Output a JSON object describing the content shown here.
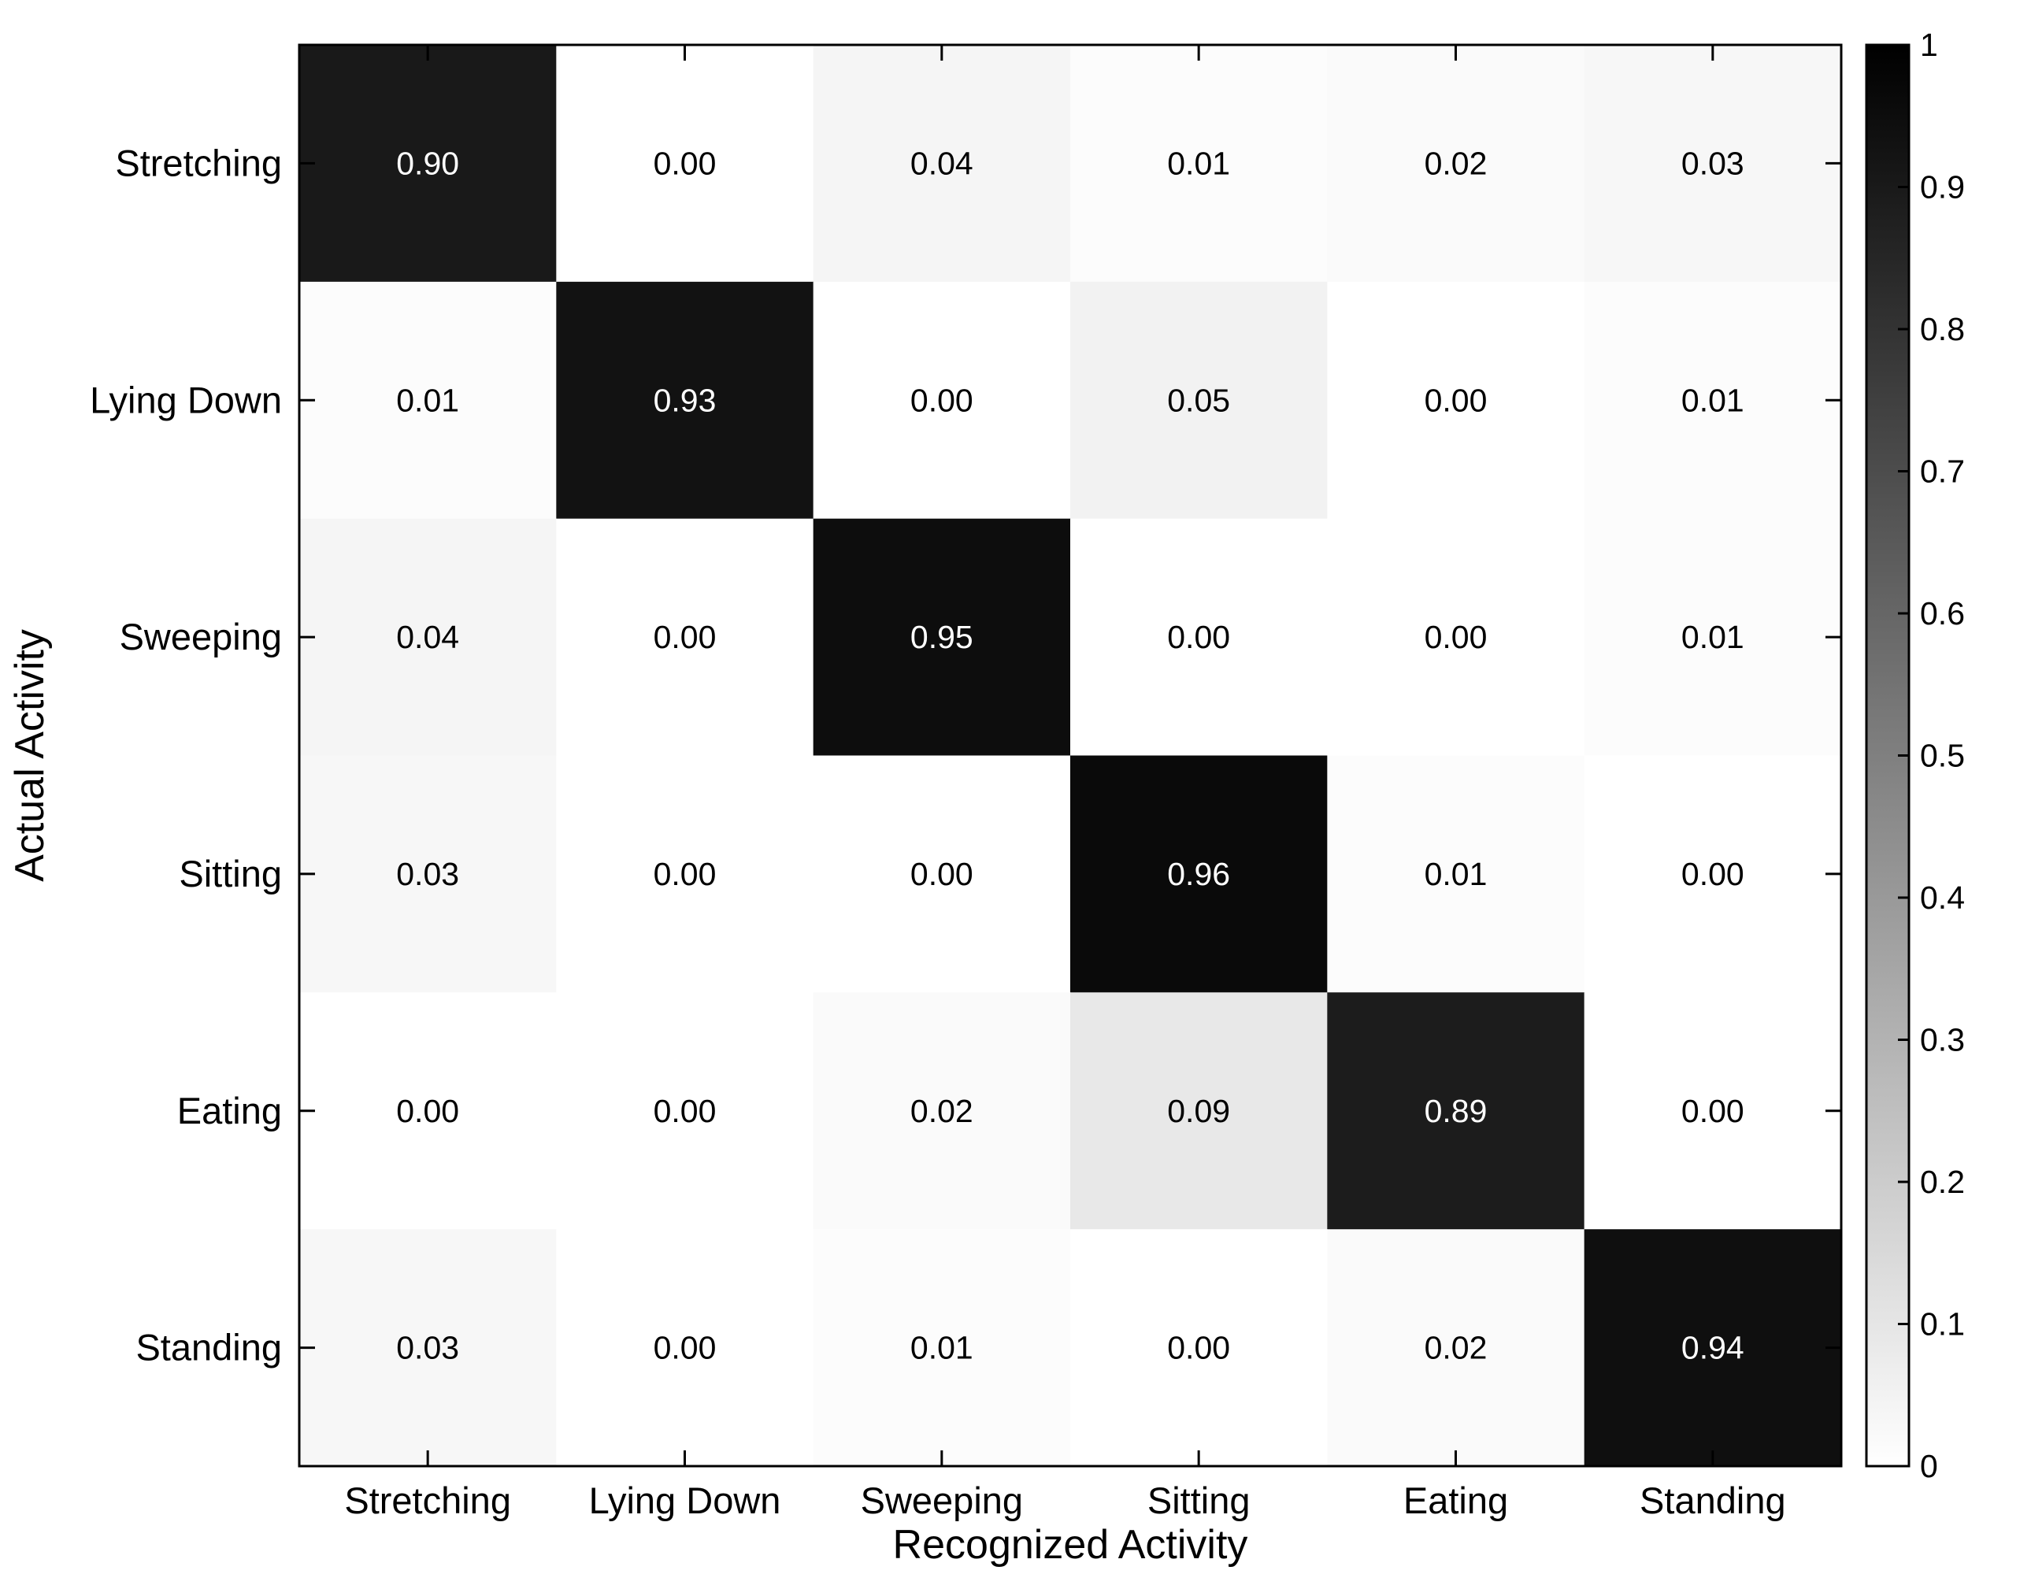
{
  "chart_data": {
    "type": "heatmap",
    "title": "",
    "xlabel": "Recognized Activity",
    "ylabel": "Actual Activity",
    "x_categories": [
      "Stretching",
      "Lying Down",
      "Sweeping",
      "Sitting",
      "Eating",
      "Standing"
    ],
    "y_categories": [
      "Stretching",
      "Lying Down",
      "Sweeping",
      "Sitting",
      "Eating",
      "Standing"
    ],
    "values": [
      [
        0.9,
        0.0,
        0.04,
        0.01,
        0.02,
        0.03
      ],
      [
        0.01,
        0.93,
        0.0,
        0.05,
        0.0,
        0.01
      ],
      [
        0.04,
        0.0,
        0.95,
        0.0,
        0.0,
        0.01
      ],
      [
        0.03,
        0.0,
        0.0,
        0.96,
        0.01,
        0.0
      ],
      [
        0.0,
        0.0,
        0.02,
        0.09,
        0.89,
        0.0
      ],
      [
        0.03,
        0.0,
        0.01,
        0.0,
        0.02,
        0.94
      ]
    ],
    "value_format_decimals": 2,
    "colormap": "gray_r",
    "color_min": "#ffffff",
    "color_max": "#000000",
    "colorbar": {
      "range": [
        0,
        1
      ],
      "ticks": [
        0,
        0.1,
        0.2,
        0.3,
        0.4,
        0.5,
        0.6,
        0.7,
        0.8,
        0.9,
        1
      ],
      "tick_labels": [
        "0",
        "0.1",
        "0.2",
        "0.3",
        "0.4",
        "0.5",
        "0.6",
        "0.7",
        "0.8",
        "0.9",
        "1"
      ],
      "placement": "right"
    },
    "grid": false
  }
}
